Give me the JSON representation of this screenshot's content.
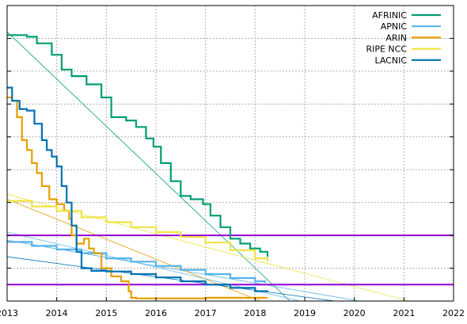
{
  "chart_data": {
    "type": "line",
    "title": "",
    "xlabel": "",
    "ylabel": "",
    "xlim": [
      2013,
      2022
    ],
    "ylim": [
      0,
      9
    ],
    "x_ticks": [
      "2013",
      "2014",
      "2015",
      "2016",
      "2017",
      "2018",
      "2019",
      "2020",
      "2021",
      "2022"
    ],
    "grid": true,
    "legend_position": "top-right",
    "series": [
      {
        "name": "AFRINIC",
        "color": "#009e73",
        "points": [
          [
            2013.0,
            8.1
          ],
          [
            2013.4,
            8.05
          ],
          [
            2013.6,
            7.85
          ],
          [
            2013.9,
            7.5
          ],
          [
            2014.1,
            7.05
          ],
          [
            2014.3,
            6.85
          ],
          [
            2014.6,
            6.6
          ],
          [
            2014.9,
            6.2
          ],
          [
            2015.1,
            5.6
          ],
          [
            2015.4,
            5.5
          ],
          [
            2015.6,
            5.3
          ],
          [
            2015.8,
            4.95
          ],
          [
            2015.95,
            4.7
          ],
          [
            2016.1,
            4.2
          ],
          [
            2016.3,
            3.65
          ],
          [
            2016.5,
            3.2
          ],
          [
            2016.7,
            3.1
          ],
          [
            2016.95,
            2.95
          ],
          [
            2017.1,
            2.6
          ],
          [
            2017.3,
            2.25
          ],
          [
            2017.5,
            1.9
          ],
          [
            2017.7,
            1.75
          ],
          [
            2017.9,
            1.6
          ],
          [
            2018.1,
            1.5
          ],
          [
            2018.25,
            1.35
          ]
        ]
      },
      {
        "name": "APNIC",
        "color": "#56b4e9",
        "points": [
          [
            2013.0,
            1.8
          ],
          [
            2013.5,
            1.68
          ],
          [
            2014.0,
            1.57
          ],
          [
            2014.5,
            1.46
          ],
          [
            2015.0,
            1.3
          ],
          [
            2015.5,
            1.2
          ],
          [
            2016.0,
            1.07
          ],
          [
            2016.5,
            0.95
          ],
          [
            2017.0,
            0.82
          ],
          [
            2017.5,
            0.7
          ],
          [
            2018.0,
            0.6
          ],
          [
            2018.2,
            0.55
          ]
        ]
      },
      {
        "name": "ARIN",
        "color": "#e69f00",
        "points": [
          [
            2013.0,
            6.2
          ],
          [
            2013.1,
            6.1
          ],
          [
            2013.2,
            5.6
          ],
          [
            2013.3,
            4.9
          ],
          [
            2013.4,
            4.6
          ],
          [
            2013.5,
            4.2
          ],
          [
            2013.6,
            3.9
          ],
          [
            2013.7,
            3.5
          ],
          [
            2013.85,
            3.1
          ],
          [
            2014.0,
            2.95
          ],
          [
            2014.15,
            2.75
          ],
          [
            2014.25,
            2.5
          ],
          [
            2014.3,
            2.0
          ],
          [
            2014.4,
            1.75
          ],
          [
            2014.55,
            1.9
          ],
          [
            2014.65,
            1.6
          ],
          [
            2014.75,
            1.45
          ],
          [
            2014.9,
            1.0
          ],
          [
            2015.1,
            0.75
          ],
          [
            2015.3,
            0.6
          ],
          [
            2015.45,
            0.3
          ],
          [
            2015.5,
            0.1
          ],
          [
            2015.6,
            0.08
          ],
          [
            2016.5,
            0.08
          ],
          [
            2017.0,
            0.1
          ],
          [
            2017.5,
            0.1
          ],
          [
            2018.25,
            0.1
          ]
        ]
      },
      {
        "name": "RIPE NCC",
        "color": "#f0e442",
        "points": [
          [
            2013.0,
            3.05
          ],
          [
            2013.5,
            2.88
          ],
          [
            2014.0,
            2.74
          ],
          [
            2014.5,
            2.55
          ],
          [
            2015.0,
            2.4
          ],
          [
            2015.5,
            2.25
          ],
          [
            2016.0,
            2.1
          ],
          [
            2016.5,
            1.95
          ],
          [
            2017.0,
            1.78
          ],
          [
            2017.5,
            1.55
          ],
          [
            2018.0,
            1.3
          ],
          [
            2018.25,
            1.2
          ]
        ]
      },
      {
        "name": "LACNIC",
        "color": "#0072b2",
        "points": [
          [
            2013.0,
            6.5
          ],
          [
            2013.1,
            6.1
          ],
          [
            2013.25,
            5.85
          ],
          [
            2013.4,
            5.8
          ],
          [
            2013.55,
            5.4
          ],
          [
            2013.7,
            4.9
          ],
          [
            2013.8,
            4.6
          ],
          [
            2013.9,
            4.4
          ],
          [
            2014.0,
            4.1
          ],
          [
            2014.1,
            3.5
          ],
          [
            2014.2,
            3.0
          ],
          [
            2014.3,
            2.3
          ],
          [
            2014.4,
            1.5
          ],
          [
            2014.5,
            1.0
          ],
          [
            2014.7,
            0.92
          ],
          [
            2015.0,
            0.9
          ],
          [
            2015.5,
            0.82
          ],
          [
            2016.0,
            0.72
          ],
          [
            2016.5,
            0.6
          ],
          [
            2017.0,
            0.5
          ],
          [
            2017.5,
            0.4
          ],
          [
            2018.0,
            0.3
          ],
          [
            2018.25,
            0.28
          ]
        ]
      }
    ],
    "trend_lines": [
      {
        "color": "#009e73",
        "from": [
          2013.0,
          8.2
        ],
        "to": [
          2018.7,
          0.0
        ]
      },
      {
        "color": "#56b4e9",
        "from": [
          2013.0,
          1.85
        ],
        "to": [
          2020.1,
          0.0
        ]
      },
      {
        "color": "#e69f00",
        "from": [
          2013.0,
          3.1
        ],
        "to": [
          2018.1,
          0.0
        ]
      },
      {
        "color": "#f0e442",
        "from": [
          2013.0,
          3.25
        ],
        "to": [
          2021.1,
          0.0
        ]
      },
      {
        "color": "#0072b2",
        "from": [
          2013.0,
          1.35
        ],
        "to": [
          2019.6,
          0.0
        ]
      },
      {
        "color": "#56b4e9",
        "from": [
          2013.0,
          2.1
        ],
        "to": [
          2018.9,
          0.0
        ]
      }
    ],
    "reference_lines": [
      {
        "color": "#9400d3",
        "y": 2.0
      },
      {
        "color": "#9400d3",
        "y": 0.5
      }
    ]
  }
}
